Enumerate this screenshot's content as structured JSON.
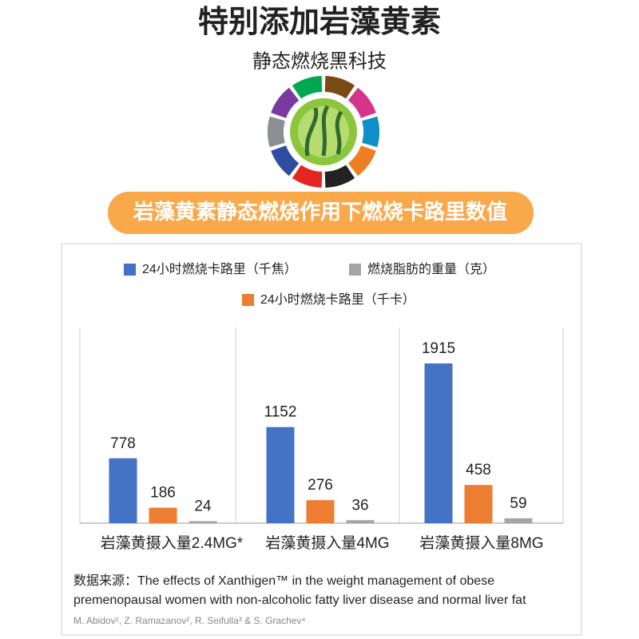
{
  "header": {
    "title": "特别添加岩藻黄素",
    "subtitle": "静态燃烧黑科技"
  },
  "banner": "岩藻黄素静态燃烧作用下燃烧卡路里数值",
  "chart_data": {
    "type": "bar",
    "categories": [
      "岩藻黄摄入量2.4MG*",
      "岩藻黄摄入量4MG",
      "岩藻黄摄入量8MG"
    ],
    "series": [
      {
        "name": "24小时燃烧卡路里（千焦）",
        "color": "#4472c4",
        "values": [
          778,
          1152,
          1915
        ]
      },
      {
        "name": "24小时燃烧卡路里（千卡）",
        "color": "#ed7d31",
        "values": [
          186,
          276,
          458
        ]
      },
      {
        "name": "燃烧脂肪的重量（克）",
        "color": "#a5a5a5",
        "values": [
          24,
          36,
          59
        ]
      }
    ]
  },
  "source": {
    "lines": [
      "数据来源：The effects of Xanthigen™ in the weight management of obese",
      "premenopausal women with non-alcoholic fatty liver disease and normal liver fat"
    ],
    "authors": "M. Abidov¹, Z. Ramazanov², R. Seifulla³ & S. Grachev⁴"
  }
}
